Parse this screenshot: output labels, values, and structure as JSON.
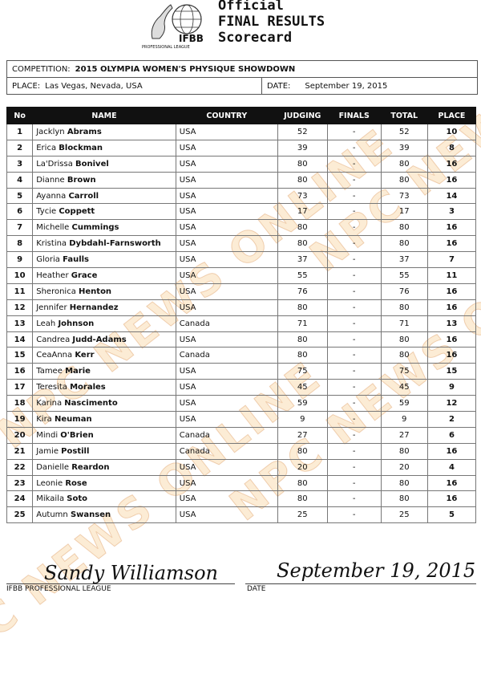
{
  "header": {
    "logo_text": "IFBB",
    "logo_sub": "PROFESSIONAL LEAGUE",
    "title_lines": [
      "Official",
      "FINAL RESULTS",
      "Scorecard"
    ]
  },
  "info": {
    "competition_label": "COMPETITION:",
    "competition": "2015 OLYMPIA WOMEN'S PHYSIQUE SHOWDOWN",
    "place_label": "PLACE:",
    "place": "Las Vegas, Nevada, USA",
    "date_label": "DATE:",
    "date": "September 19, 2015"
  },
  "columns": [
    "No",
    "NAME",
    "COUNTRY",
    "JUDGING",
    "FINALS",
    "TOTAL",
    "PLACE"
  ],
  "rows": [
    [
      "1",
      "Jacklyn",
      "Abrams",
      "USA",
      "52",
      "-",
      "52",
      "10"
    ],
    [
      "2",
      "Erica",
      "Blockman",
      "USA",
      "39",
      "-",
      "39",
      "8"
    ],
    [
      "3",
      "La'Drissa",
      "Bonivel",
      "USA",
      "80",
      "-",
      "80",
      "16"
    ],
    [
      "4",
      "Dianne",
      "Brown",
      "USA",
      "80",
      "-",
      "80",
      "16"
    ],
    [
      "5",
      "Ayanna",
      "Carroll",
      "USA",
      "73",
      "-",
      "73",
      "14"
    ],
    [
      "6",
      "Tycie",
      "Coppett",
      "USA",
      "17",
      "-",
      "17",
      "3"
    ],
    [
      "7",
      "Michelle",
      "Cummings",
      "USA",
      "80",
      "-",
      "80",
      "16"
    ],
    [
      "8",
      "Kristina",
      "Dybdahl-Farnsworth",
      "USA",
      "80",
      "-",
      "80",
      "16"
    ],
    [
      "9",
      "Gloria",
      "Faulls",
      "USA",
      "37",
      "-",
      "37",
      "7"
    ],
    [
      "10",
      "Heather",
      "Grace",
      "USA",
      "55",
      "-",
      "55",
      "11"
    ],
    [
      "11",
      "Sheronica",
      "Henton",
      "USA",
      "76",
      "-",
      "76",
      "16"
    ],
    [
      "12",
      "Jennifer",
      "Hernandez",
      "USA",
      "80",
      "-",
      "80",
      "16"
    ],
    [
      "13",
      "Leah",
      "Johnson",
      "Canada",
      "71",
      "-",
      "71",
      "13"
    ],
    [
      "14",
      "Candrea",
      "Judd-Adams",
      "USA",
      "80",
      "-",
      "80",
      "16"
    ],
    [
      "15",
      "CeaAnna",
      "Kerr",
      "Canada",
      "80",
      "-",
      "80",
      "16"
    ],
    [
      "16",
      "Tamee",
      "Marie",
      "USA",
      "75",
      "-",
      "75",
      "15"
    ],
    [
      "17",
      "Teresita",
      "Morales",
      "USA",
      "45",
      "-",
      "45",
      "9"
    ],
    [
      "18",
      "Karina",
      "Nascimento",
      "USA",
      "59",
      "-",
      "59",
      "12"
    ],
    [
      "19",
      "Kira",
      "Neuman",
      "USA",
      "9",
      "-",
      "9",
      "2"
    ],
    [
      "20",
      "Mindi",
      "O'Brien",
      "Canada",
      "27",
      "-",
      "27",
      "6"
    ],
    [
      "21",
      "Jamie",
      "Postill",
      "Canada",
      "80",
      "-",
      "80",
      "16"
    ],
    [
      "22",
      "Danielle",
      "Reardon",
      "USA",
      "20",
      "-",
      "20",
      "4"
    ],
    [
      "23",
      "Leonie",
      "Rose",
      "USA",
      "80",
      "-",
      "80",
      "16"
    ],
    [
      "24",
      "Mikaila",
      "Soto",
      "USA",
      "80",
      "-",
      "80",
      "16"
    ],
    [
      "25",
      "Autumn",
      "Swansen",
      "USA",
      "25",
      "-",
      "25",
      "5"
    ]
  ],
  "footer": {
    "signature": "Sandy Williamson",
    "signature_label": "IFBB PROFESSIONAL LEAGUE",
    "date_signature": "September 19, 2015",
    "date_label": "DATE"
  },
  "watermark": "NPC NEWS ONLINE"
}
